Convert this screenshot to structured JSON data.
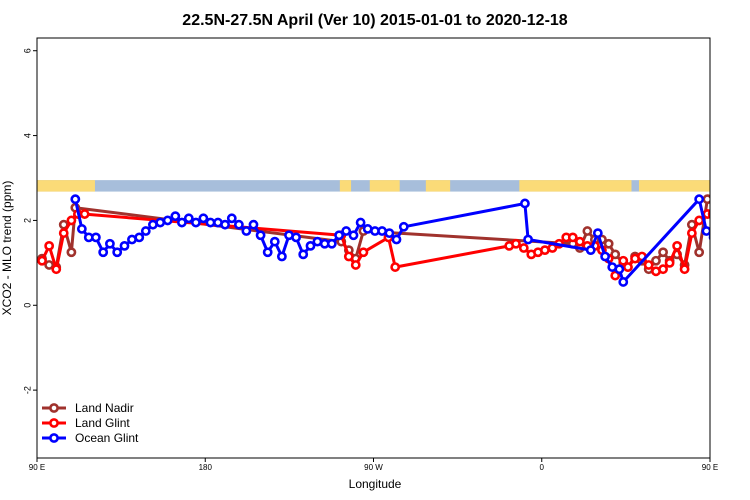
{
  "chart_data": {
    "type": "line",
    "title": "22.5N-27.5N April (Ver 10)   2015-01-01 to 2020-12-18",
    "xlabel": "Longitude",
    "ylabel": "XCO2 - MLO trend (ppm)",
    "xlim": [
      90,
      450
    ],
    "ylim": [
      -3.6,
      6.3
    ],
    "x_ticks": [
      {
        "value": 90,
        "label": "90 E"
      },
      {
        "value": 180,
        "label": "180"
      },
      {
        "value": 270,
        "label": "90 W"
      },
      {
        "value": 360,
        "label": "0"
      },
      {
        "value": 450,
        "label": "90 E"
      },
      {
        "value": 540,
        "label": "180"
      }
    ],
    "y_ticks": [
      {
        "value": -2,
        "label": "-2"
      },
      {
        "value": 0,
        "label": "0"
      },
      {
        "value": 2,
        "label": "2"
      },
      {
        "value": 4,
        "label": "4"
      },
      {
        "value": 6,
        "label": "6"
      }
    ],
    "legend_position": "bottom-left",
    "land_strip": {
      "y_range": [
        2.68,
        2.95
      ],
      "ocean_color": "#a7bedb",
      "land_color": "#fbdb78",
      "land_x": [
        [
          90,
          121
        ],
        [
          252,
          258
        ],
        [
          268,
          284
        ],
        [
          298,
          311
        ],
        [
          348,
          408
        ],
        [
          481,
          495
        ],
        [
          412,
          466
        ]
      ]
    },
    "series": [
      {
        "name": "Land Nadir",
        "color": "#a0322d",
        "points": [
          [
            92.7,
            1.1
          ],
          [
            96.5,
            0.95
          ],
          [
            100.3,
            0.9
          ],
          [
            104.3,
            1.9
          ],
          [
            108.4,
            1.25
          ],
          [
            110.5,
            2.3
          ],
          [
            252.8,
            1.5
          ],
          [
            256.8,
            1.3
          ],
          [
            260.5,
            1.1
          ],
          [
            264.6,
            1.75
          ],
          [
            376.6,
            1.45
          ],
          [
            380.4,
            1.35
          ],
          [
            384.4,
            1.75
          ],
          [
            388.4,
            1.55
          ],
          [
            392.2,
            1.55
          ],
          [
            395.8,
            1.45
          ],
          [
            399.3,
            1.2
          ],
          [
            403.6,
            1.0
          ],
          [
            406.1,
            0.9
          ],
          [
            409.9,
            1.15
          ],
          [
            413.6,
            1.05
          ],
          [
            417.2,
            0.85
          ],
          [
            421.1,
            1.05
          ],
          [
            424.9,
            1.25
          ],
          [
            428.4,
            1.05
          ],
          [
            432.4,
            1.2
          ],
          [
            436.4,
            0.95
          ],
          [
            440.3,
            1.9
          ],
          [
            444.2,
            1.25
          ],
          [
            448.6,
            2.5
          ]
        ]
      },
      {
        "name": "Land Glint",
        "color": "#ff0000",
        "points": [
          [
            92.7,
            1.05
          ],
          [
            96.5,
            1.4
          ],
          [
            100.3,
            0.85
          ],
          [
            104.3,
            1.7
          ],
          [
            108.4,
            2.0
          ],
          [
            111.9,
            2.15
          ],
          [
            115.5,
            2.15
          ],
          [
            252.8,
            1.65
          ],
          [
            256.8,
            1.15
          ],
          [
            260.5,
            0.95
          ],
          [
            264.6,
            1.25
          ],
          [
            278.0,
            1.6
          ],
          [
            281.6,
            0.9
          ],
          [
            342.6,
            1.4
          ],
          [
            346.2,
            1.45
          ],
          [
            350.4,
            1.35
          ],
          [
            354.4,
            1.2
          ],
          [
            358.0,
            1.25
          ],
          [
            361.7,
            1.3
          ],
          [
            365.7,
            1.35
          ],
          [
            369.3,
            1.45
          ],
          [
            373.1,
            1.6
          ],
          [
            376.6,
            1.6
          ],
          [
            380.4,
            1.5
          ],
          [
            384.4,
            1.4
          ],
          [
            388.4,
            1.4
          ],
          [
            392.2,
            1.3
          ],
          [
            395.8,
            1.1
          ],
          [
            399.3,
            0.7
          ],
          [
            403.6,
            1.05
          ],
          [
            406.1,
            0.9
          ],
          [
            409.9,
            1.1
          ],
          [
            413.6,
            1.15
          ],
          [
            417.2,
            0.95
          ],
          [
            421.1,
            0.8
          ],
          [
            424.9,
            0.85
          ],
          [
            428.4,
            1.0
          ],
          [
            432.4,
            1.4
          ],
          [
            436.4,
            0.85
          ],
          [
            440.3,
            1.7
          ],
          [
            444.2,
            2.0
          ],
          [
            448.6,
            2.15
          ],
          [
            451.4,
            2.15
          ]
        ]
      },
      {
        "name": "Ocean Glint",
        "color": "#0000ff",
        "points": [
          [
            110.5,
            2.5
          ],
          [
            114.0,
            1.8
          ],
          [
            117.7,
            1.6
          ],
          [
            121.5,
            1.6
          ],
          [
            125.4,
            1.25
          ],
          [
            129.0,
            1.45
          ],
          [
            132.9,
            1.25
          ],
          [
            136.8,
            1.4
          ],
          [
            140.8,
            1.55
          ],
          [
            144.7,
            1.6
          ],
          [
            148.2,
            1.75
          ],
          [
            152.0,
            1.9
          ],
          [
            155.9,
            1.95
          ],
          [
            159.9,
            2.0
          ],
          [
            164.0,
            2.1
          ],
          [
            167.5,
            1.95
          ],
          [
            171.2,
            2.05
          ],
          [
            175.0,
            1.95
          ],
          [
            179.0,
            2.05
          ],
          [
            182.8,
            1.95
          ],
          [
            186.8,
            1.95
          ],
          [
            190.6,
            1.9
          ],
          [
            194.2,
            2.05
          ],
          [
            198.0,
            1.9
          ],
          [
            202.0,
            1.75
          ],
          [
            205.8,
            1.9
          ],
          [
            209.6,
            1.65
          ],
          [
            213.4,
            1.25
          ],
          [
            217.2,
            1.5
          ],
          [
            221.0,
            1.15
          ],
          [
            224.8,
            1.65
          ],
          [
            228.6,
            1.6
          ],
          [
            232.4,
            1.2
          ],
          [
            236.3,
            1.4
          ],
          [
            240.0,
            1.5
          ],
          [
            243.9,
            1.45
          ],
          [
            247.7,
            1.45
          ],
          [
            251.6,
            1.65
          ],
          [
            255.4,
            1.75
          ],
          [
            259.3,
            1.65
          ],
          [
            263.1,
            1.95
          ],
          [
            266.9,
            1.8
          ],
          [
            270.8,
            1.75
          ],
          [
            274.6,
            1.75
          ],
          [
            278.5,
            1.7
          ],
          [
            282.3,
            1.55
          ],
          [
            286.2,
            1.85
          ],
          [
            351.0,
            2.4
          ],
          [
            352.7,
            1.55
          ],
          [
            386.2,
            1.3
          ],
          [
            390.0,
            1.7
          ],
          [
            393.9,
            1.15
          ],
          [
            397.7,
            0.9
          ],
          [
            401.5,
            0.85
          ],
          [
            403.6,
            0.55
          ],
          [
            444.2,
            2.5
          ],
          [
            448.1,
            1.75
          ],
          [
            451.9,
            1.6
          ],
          [
            455.7,
            1.6
          ],
          [
            459.5,
            1.25
          ],
          [
            463.3,
            1.5
          ],
          [
            467.2,
            1.25
          ],
          [
            471.0,
            1.45
          ],
          [
            474.8,
            1.55
          ],
          [
            478.6,
            1.65
          ],
          [
            482.4,
            1.8
          ],
          [
            486.2,
            1.9
          ],
          [
            490.0,
            2.0
          ]
        ]
      }
    ]
  }
}
